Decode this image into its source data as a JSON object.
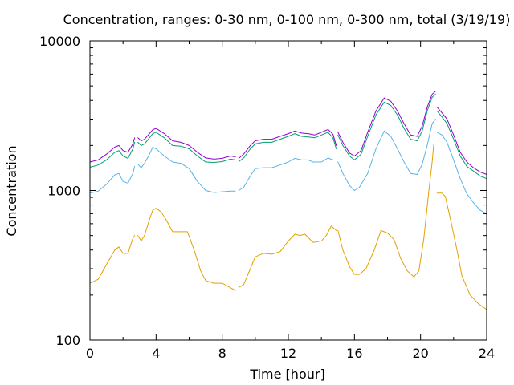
{
  "chart_data": {
    "type": "line",
    "title": "Concentration, ranges: 0-30 nm, 0-100 nm, 0-300 nm, total (3/19/19)",
    "xlabel": "Time [hour]",
    "ylabel": "Concentration",
    "xlim": [
      0,
      24
    ],
    "ylim": [
      100,
      10000
    ],
    "yscale": "log",
    "grid": false,
    "legend": "none",
    "x_ticks": [
      "0",
      "4",
      "8",
      "12",
      "16",
      "20",
      "24"
    ],
    "x_tick_values": [
      0,
      4,
      8,
      12,
      16,
      20,
      24
    ],
    "y_ticks": [
      "100",
      "1000",
      "10000"
    ],
    "y_tick_values": [
      100,
      1000,
      10000
    ],
    "series": [
      {
        "color": "#e5a000",
        "segments": [
          [
            [
              0,
              240
            ],
            [
              0.5,
              255
            ],
            [
              1,
              320
            ],
            [
              1.5,
              400
            ],
            [
              1.75,
              420
            ],
            [
              2,
              380
            ],
            [
              2.3,
              380
            ],
            [
              2.6,
              480
            ],
            [
              2.7,
              500
            ]
          ],
          [
            [
              2.9,
              500
            ],
            [
              3.1,
              460
            ],
            [
              3.3,
              500
            ],
            [
              3.6,
              640
            ],
            [
              3.8,
              740
            ],
            [
              4,
              760
            ],
            [
              4.3,
              720
            ],
            [
              4.6,
              640
            ],
            [
              5,
              530
            ],
            [
              5.5,
              530
            ],
            [
              5.9,
              530
            ],
            [
              6.3,
              400
            ],
            [
              6.7,
              290
            ],
            [
              7,
              250
            ],
            [
              7.5,
              240
            ],
            [
              8,
              240
            ],
            [
              8.3,
              230
            ],
            [
              8.8,
              215
            ]
          ],
          [
            [
              9,
              225
            ],
            [
              9.3,
              235
            ],
            [
              9.7,
              300
            ],
            [
              10,
              360
            ],
            [
              10.5,
              380
            ],
            [
              11,
              375
            ],
            [
              11.5,
              390
            ],
            [
              12,
              460
            ],
            [
              12.4,
              510
            ],
            [
              12.7,
              500
            ],
            [
              13,
              510
            ],
            [
              13.5,
              450
            ],
            [
              14,
              460
            ],
            [
              14.3,
              500
            ],
            [
              14.6,
              580
            ],
            [
              14.9,
              540
            ]
          ],
          [
            [
              15,
              540
            ],
            [
              15.3,
              400
            ],
            [
              15.7,
              310
            ],
            [
              16,
              275
            ],
            [
              16.3,
              275
            ],
            [
              16.7,
              300
            ],
            [
              17.2,
              400
            ],
            [
              17.6,
              540
            ],
            [
              18,
              520
            ],
            [
              18.4,
              470
            ],
            [
              18.8,
              350
            ],
            [
              19.2,
              290
            ],
            [
              19.6,
              265
            ],
            [
              19.9,
              290
            ],
            [
              20.2,
              480
            ],
            [
              20.5,
              1000
            ],
            [
              20.7,
              1550
            ],
            [
              20.8,
              2050
            ]
          ],
          [
            [
              21,
              960
            ],
            [
              21.3,
              960
            ],
            [
              21.5,
              910
            ],
            [
              21.8,
              650
            ],
            [
              22.2,
              400
            ],
            [
              22.5,
              270
            ],
            [
              23,
              200
            ],
            [
              23.5,
              175
            ],
            [
              24,
              160
            ]
          ]
        ]
      },
      {
        "color": "#56b4e9",
        "segments": [
          [
            [
              0,
              960
            ],
            [
              0.5,
              990
            ],
            [
              1,
              1100
            ],
            [
              1.5,
              1270
            ],
            [
              1.75,
              1300
            ],
            [
              2,
              1150
            ],
            [
              2.3,
              1120
            ],
            [
              2.6,
              1300
            ],
            [
              2.7,
              1450
            ]
          ],
          [
            [
              2.9,
              1500
            ],
            [
              3.1,
              1420
            ],
            [
              3.3,
              1520
            ],
            [
              3.6,
              1750
            ],
            [
              3.8,
              1950
            ],
            [
              4,
              1900
            ],
            [
              4.5,
              1700
            ],
            [
              5,
              1550
            ],
            [
              5.5,
              1520
            ],
            [
              6,
              1400
            ],
            [
              6.5,
              1150
            ],
            [
              7,
              1000
            ],
            [
              7.5,
              970
            ],
            [
              8,
              980
            ],
            [
              8.5,
              990
            ],
            [
              8.8,
              990
            ]
          ],
          [
            [
              9,
              1000
            ],
            [
              9.3,
              1050
            ],
            [
              9.7,
              1250
            ],
            [
              10,
              1400
            ],
            [
              10.5,
              1420
            ],
            [
              11,
              1420
            ],
            [
              11.5,
              1480
            ],
            [
              12,
              1550
            ],
            [
              12.4,
              1640
            ],
            [
              12.8,
              1600
            ],
            [
              13.2,
              1600
            ],
            [
              13.5,
              1550
            ],
            [
              14,
              1550
            ],
            [
              14.4,
              1650
            ],
            [
              14.7,
              1600
            ]
          ],
          [
            [
              15,
              1550
            ],
            [
              15.3,
              1300
            ],
            [
              15.7,
              1080
            ],
            [
              16,
              1000
            ],
            [
              16.3,
              1050
            ],
            [
              16.8,
              1300
            ],
            [
              17.3,
              1900
            ],
            [
              17.8,
              2500
            ],
            [
              18.2,
              2300
            ],
            [
              18.6,
              1900
            ],
            [
              19,
              1550
            ],
            [
              19.4,
              1300
            ],
            [
              19.8,
              1280
            ],
            [
              20.1,
              1500
            ],
            [
              20.4,
              2000
            ],
            [
              20.7,
              2800
            ],
            [
              20.9,
              3000
            ]
          ],
          [
            [
              21,
              2450
            ],
            [
              21.3,
              2350
            ],
            [
              21.6,
              2100
            ],
            [
              22,
              1600
            ],
            [
              22.4,
              1200
            ],
            [
              22.8,
              950
            ],
            [
              23.2,
              830
            ],
            [
              23.6,
              740
            ],
            [
              24,
              700
            ]
          ]
        ]
      },
      {
        "color": "#009e73",
        "segments": [
          [
            [
              0,
              1430
            ],
            [
              0.5,
              1480
            ],
            [
              1,
              1600
            ],
            [
              1.5,
              1800
            ],
            [
              1.75,
              1850
            ],
            [
              2,
              1700
            ],
            [
              2.3,
              1640
            ],
            [
              2.6,
              1900
            ],
            [
              2.7,
              2100
            ]
          ],
          [
            [
              2.9,
              2100
            ],
            [
              3.1,
              2000
            ],
            [
              3.3,
              2050
            ],
            [
              3.6,
              2250
            ],
            [
              3.8,
              2400
            ],
            [
              4,
              2450
            ],
            [
              4.5,
              2250
            ],
            [
              5,
              2000
            ],
            [
              5.5,
              1980
            ],
            [
              6,
              1900
            ],
            [
              6.5,
              1700
            ],
            [
              7,
              1550
            ],
            [
              7.5,
              1540
            ],
            [
              8,
              1560
            ],
            [
              8.5,
              1620
            ],
            [
              8.8,
              1600
            ]
          ],
          [
            [
              9,
              1560
            ],
            [
              9.3,
              1650
            ],
            [
              9.7,
              1900
            ],
            [
              10,
              2050
            ],
            [
              10.5,
              2100
            ],
            [
              11,
              2100
            ],
            [
              11.5,
              2200
            ],
            [
              12,
              2300
            ],
            [
              12.4,
              2400
            ],
            [
              12.8,
              2300
            ],
            [
              13.2,
              2280
            ],
            [
              13.6,
              2250
            ],
            [
              14,
              2350
            ],
            [
              14.4,
              2450
            ],
            [
              14.7,
              2250
            ],
            [
              14.9,
              1900
            ]
          ],
          [
            [
              15,
              2350
            ],
            [
              15.3,
              2000
            ],
            [
              15.7,
              1700
            ],
            [
              16,
              1600
            ],
            [
              16.4,
              1750
            ],
            [
              16.8,
              2300
            ],
            [
              17.3,
              3200
            ],
            [
              17.8,
              3900
            ],
            [
              18.2,
              3700
            ],
            [
              18.6,
              3200
            ],
            [
              19,
              2600
            ],
            [
              19.4,
              2200
            ],
            [
              19.8,
              2150
            ],
            [
              20.1,
              2500
            ],
            [
              20.4,
              3400
            ],
            [
              20.7,
              4200
            ],
            [
              20.9,
              4400
            ]
          ],
          [
            [
              21,
              3400
            ],
            [
              21.3,
              3100
            ],
            [
              21.6,
              2800
            ],
            [
              22,
              2200
            ],
            [
              22.4,
              1700
            ],
            [
              22.8,
              1450
            ],
            [
              23.2,
              1350
            ],
            [
              23.6,
              1250
            ],
            [
              24,
              1200
            ]
          ]
        ]
      },
      {
        "color": "#9400d3",
        "segments": [
          [
            [
              0,
              1550
            ],
            [
              0.5,
              1600
            ],
            [
              1,
              1750
            ],
            [
              1.5,
              1950
            ],
            [
              1.75,
              2000
            ],
            [
              2,
              1850
            ],
            [
              2.3,
              1800
            ],
            [
              2.6,
              2050
            ],
            [
              2.7,
              2250
            ]
          ],
          [
            [
              2.9,
              2250
            ],
            [
              3.1,
              2150
            ],
            [
              3.3,
              2200
            ],
            [
              3.6,
              2400
            ],
            [
              3.8,
              2550
            ],
            [
              4,
              2600
            ],
            [
              4.5,
              2400
            ],
            [
              5,
              2150
            ],
            [
              5.5,
              2100
            ],
            [
              6,
              2000
            ],
            [
              6.5,
              1800
            ],
            [
              7,
              1650
            ],
            [
              7.5,
              1620
            ],
            [
              8,
              1640
            ],
            [
              8.5,
              1700
            ],
            [
              8.8,
              1680
            ]
          ],
          [
            [
              9,
              1640
            ],
            [
              9.3,
              1750
            ],
            [
              9.7,
              2000
            ],
            [
              10,
              2150
            ],
            [
              10.5,
              2200
            ],
            [
              11,
              2200
            ],
            [
              11.5,
              2300
            ],
            [
              12,
              2400
            ],
            [
              12.4,
              2500
            ],
            [
              12.8,
              2420
            ],
            [
              13.2,
              2400
            ],
            [
              13.6,
              2350
            ],
            [
              14,
              2450
            ],
            [
              14.4,
              2560
            ],
            [
              14.7,
              2380
            ],
            [
              14.9,
              2000
            ]
          ],
          [
            [
              15,
              2450
            ],
            [
              15.3,
              2100
            ],
            [
              15.7,
              1780
            ],
            [
              16,
              1700
            ],
            [
              16.4,
              1850
            ],
            [
              16.8,
              2450
            ],
            [
              17.3,
              3400
            ],
            [
              17.8,
              4150
            ],
            [
              18.2,
              3950
            ],
            [
              18.6,
              3400
            ],
            [
              19,
              2800
            ],
            [
              19.4,
              2350
            ],
            [
              19.8,
              2300
            ],
            [
              20.1,
              2700
            ],
            [
              20.4,
              3600
            ],
            [
              20.7,
              4400
            ],
            [
              20.9,
              4600
            ]
          ],
          [
            [
              21,
              3600
            ],
            [
              21.3,
              3300
            ],
            [
              21.6,
              3000
            ],
            [
              22,
              2350
            ],
            [
              22.4,
              1800
            ],
            [
              22.8,
              1550
            ],
            [
              23.2,
              1420
            ],
            [
              23.6,
              1330
            ],
            [
              24,
              1280
            ]
          ]
        ]
      }
    ]
  }
}
